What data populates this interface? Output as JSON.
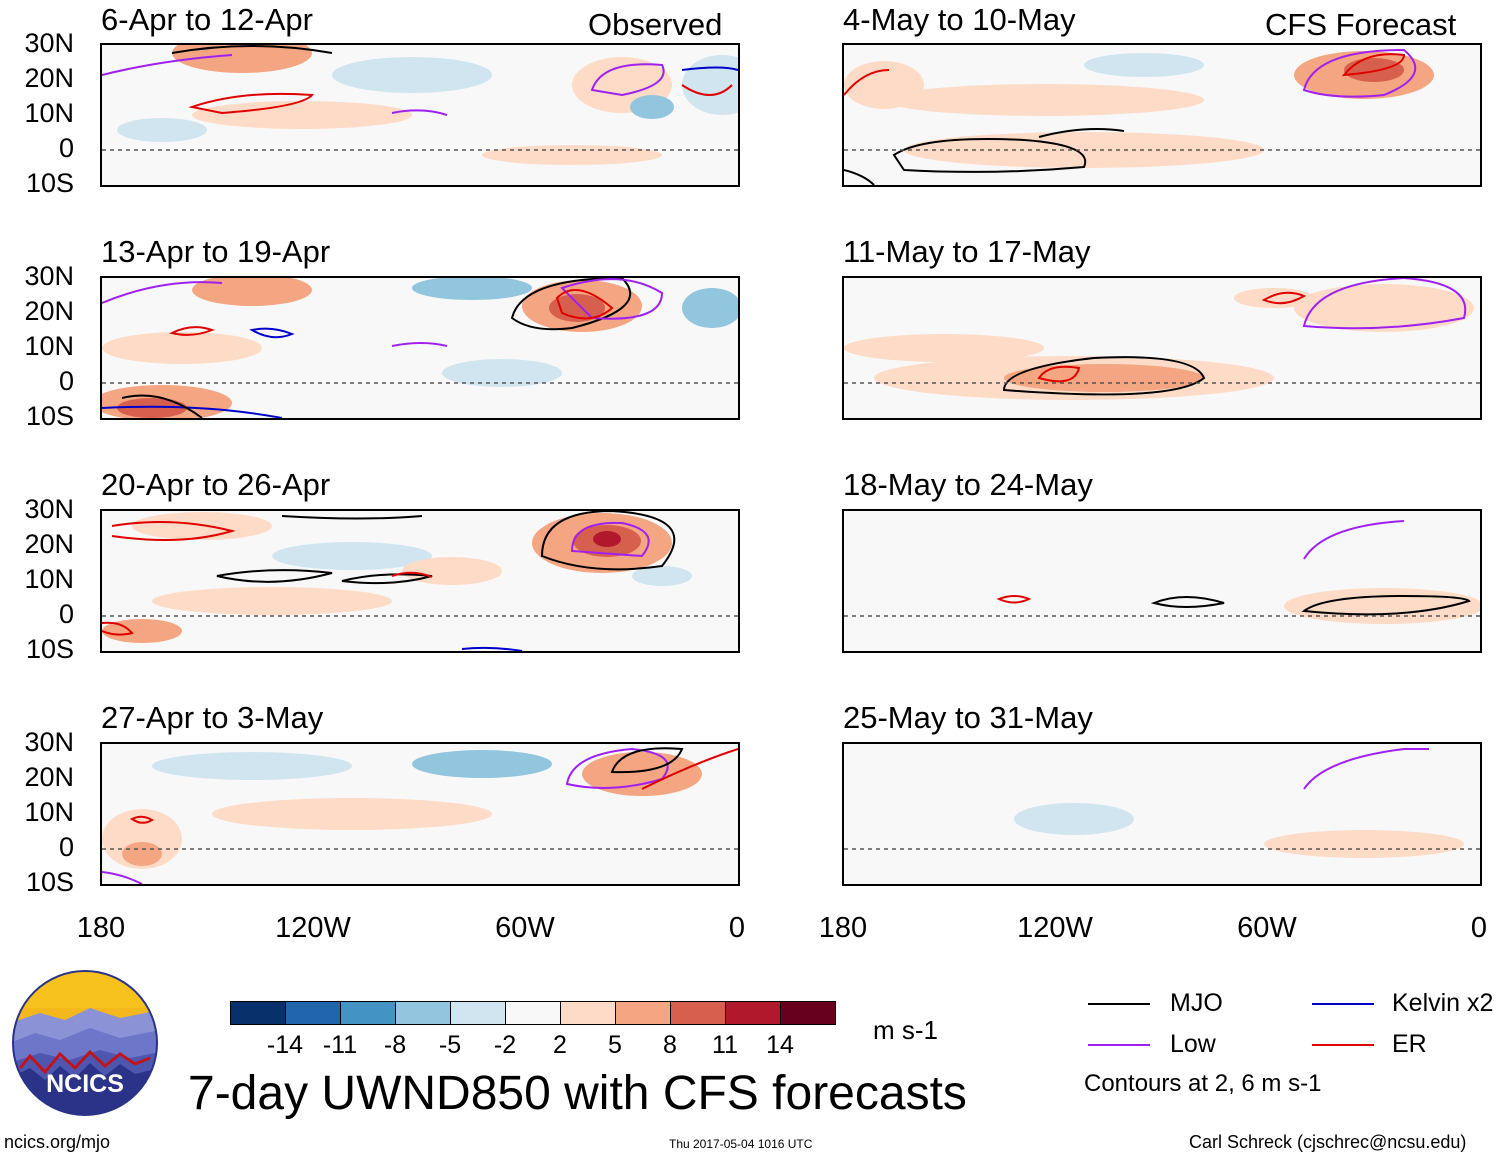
{
  "column_headers": {
    "observed": "Observed",
    "forecast": "CFS Forecast"
  },
  "panels": {
    "observed": [
      {
        "title": "6-Apr to 12-Apr"
      },
      {
        "title": "13-Apr to 19-Apr"
      },
      {
        "title": "20-Apr to 26-Apr"
      },
      {
        "title": "27-Apr to 3-May"
      }
    ],
    "forecast": [
      {
        "title": "4-May to 10-May"
      },
      {
        "title": "11-May to 17-May"
      },
      {
        "title": "18-May to 24-May"
      },
      {
        "title": "25-May to 31-May"
      }
    ]
  },
  "chart_data": {
    "type": "heatmap",
    "title": "7-day UWND850 with CFS forecasts",
    "variable": "850-hPa zonal wind anomaly",
    "units": "m s-1",
    "lat_ticks": [
      "30N",
      "20N",
      "10N",
      "0",
      "10S"
    ],
    "lon_ticks": [
      "180",
      "120W",
      "60W",
      "0"
    ],
    "lat_range": [
      -10,
      30
    ],
    "lon_range": [
      -180,
      0
    ],
    "colorbar": {
      "ticks": [
        "-14",
        "-11",
        "-8",
        "-5",
        "-2",
        "2",
        "5",
        "8",
        "11",
        "14"
      ],
      "bins": [
        {
          "range": "< -14",
          "color": "#08306b"
        },
        {
          "range": "-14 to -11",
          "color": "#2166ac"
        },
        {
          "range": "-11 to -8",
          "color": "#4393c3"
        },
        {
          "range": "-8 to -5",
          "color": "#92c5de"
        },
        {
          "range": "-5 to -2",
          "color": "#d1e5f0"
        },
        {
          "range": "-2 to 2",
          "color": "#f8f8f8"
        },
        {
          "range": "2 to 5",
          "color": "#fddbc7"
        },
        {
          "range": "5 to 8",
          "color": "#f4a582"
        },
        {
          "range": "8 to 11",
          "color": "#d6604d"
        },
        {
          "range": "11 to 14",
          "color": "#b2182b"
        },
        {
          "range": "> 14",
          "color": "#67001f"
        }
      ]
    },
    "contours": {
      "levels": "Contours at 2, 6 m s-1",
      "series": [
        {
          "name": "MJO",
          "color": "#000000"
        },
        {
          "name": "Low",
          "color": "#a020f0"
        },
        {
          "name": "Kelvin x2",
          "color": "#0000cd"
        },
        {
          "name": "ER",
          "color": "#e00000"
        }
      ]
    }
  },
  "logo": {
    "text": "NCICS"
  },
  "footer": {
    "url": "ncics.org/mjo",
    "timestamp": "Thu 2017-05-04 1016 UTC",
    "author": "Carl Schreck (cjschrec@ncsu.edu)"
  }
}
